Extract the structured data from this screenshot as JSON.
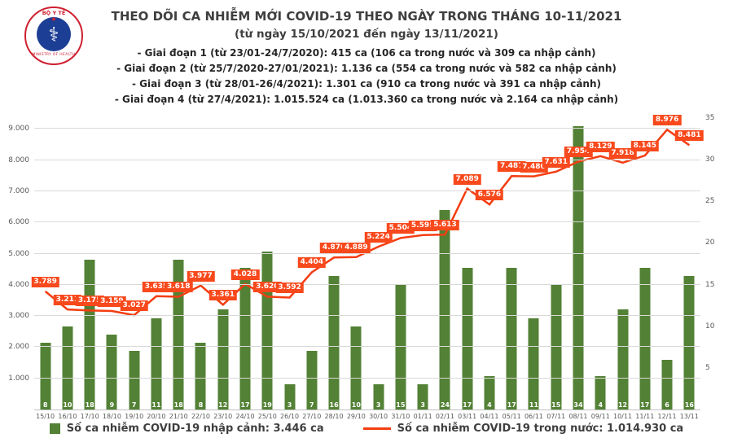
{
  "header": {
    "title": "THEO DÕI CA NHIỄM MỚI COVID-19 THEO NGÀY TRONG THÁNG 10-11/2021",
    "subtitle": "(từ ngày 15/10/2021 đến ngày 13/11/2021)",
    "periods": [
      "- Giai đoạn 1 (từ 23/01-24/7/2020): 415 ca (106 ca trong nước và 309 ca nhập cảnh)",
      "- Giai đoạn 2 (từ 25/7/2020-27/01/2021): 1.136 ca (554 ca trong nước và 582 ca nhập cảnh)",
      "- Giai đoạn 3 (từ 28/01-26/4/2021): 1.301 ca (910 ca trong nước và 391 ca nhập cảnh)",
      "- Giai đoạn 4 (từ 27/4/2021): 1.015.524 ca (1.013.360 ca trong nước và 2.164 ca nhập cảnh)"
    ],
    "logo": {
      "top": "BỘ Y TẾ",
      "bottom": "MINISTRY OF HEALTH"
    }
  },
  "colors": {
    "bar_green": "#538135",
    "line_red": "#f43d12",
    "label_bg": "#f8491c",
    "grid": "#d9d9d9",
    "axis_text": "#595959"
  },
  "chart_data": {
    "type": "combo",
    "title": "THEO DÕI CA NHIỄM MỚI COVID-19 THEO NGÀY TRONG THÁNG 10-11/2021",
    "categories": [
      "15/10",
      "16/10",
      "17/10",
      "18/10",
      "19/10",
      "20/10",
      "21/10",
      "22/10",
      "23/10",
      "24/10",
      "25/10",
      "26/10",
      "27/10",
      "28/10",
      "29/10",
      "30/10",
      "31/10",
      "01/11",
      "02/11",
      "03/11",
      "04/11",
      "05/11",
      "06/11",
      "07/11",
      "08/11",
      "09/11",
      "10/11",
      "11/11",
      "12/11",
      "13/11"
    ],
    "series": [
      {
        "name": "Số ca nhiễm COVID-19 nhập cảnh",
        "type": "bar",
        "axis": "right",
        "color": "#538135",
        "values": [
          8,
          10,
          18,
          9,
          7,
          11,
          18,
          8,
          12,
          17,
          19,
          3,
          7,
          16,
          10,
          3,
          15,
          3,
          24,
          17,
          4,
          17,
          11,
          15,
          34,
          4,
          12,
          17,
          6,
          16
        ]
      },
      {
        "name": "Số ca nhiễm COVID-19 trong nước",
        "type": "line",
        "axis": "left",
        "color": "#f43d12",
        "values": [
          3789,
          3211,
          3175,
          3159,
          3027,
          3635,
          3618,
          3977,
          3361,
          4028,
          3620,
          3592,
          4404,
          4876,
          4889,
          5224,
          5504,
          5595,
          5613,
          7089,
          6576,
          7487,
          7480,
          7631,
          7954,
          8129,
          7918,
          8145,
          8976,
          8481
        ],
        "labels": [
          "3.789",
          "3.211",
          "3.175",
          "3.159",
          "3.027",
          "3.635",
          "3.618",
          "3.977",
          "3.361",
          "4.028",
          "3.620",
          "3.592",
          "4.404",
          "4.876",
          "4.889",
          "5.224",
          "5.504",
          "5.595",
          "5.613",
          "7.089",
          "6.576",
          "7.487",
          "7.480",
          "7.631",
          "7.954",
          "8.129",
          "7.918",
          "8.145",
          "8.976",
          "8.481"
        ]
      }
    ],
    "left_axis": {
      "max": 9350,
      "ticks": [
        {
          "label": "9.000",
          "value": 9000
        },
        {
          "label": "8.000",
          "value": 8000
        },
        {
          "label": "7.000",
          "value": 7000
        },
        {
          "label": "6.000",
          "value": 6000
        },
        {
          "label": "5.000",
          "value": 5000
        },
        {
          "label": "4.000",
          "value": 4000
        },
        {
          "label": "3.000",
          "value": 3000
        },
        {
          "label": "2.000",
          "value": 2000
        },
        {
          "label": "1.000",
          "value": 1000
        }
      ]
    },
    "right_axis": {
      "max": 35,
      "ticks": [
        {
          "label": "35",
          "value": 35
        },
        {
          "label": "30",
          "value": 30
        },
        {
          "label": "25",
          "value": 25
        },
        {
          "label": "20",
          "value": 20
        },
        {
          "label": "15",
          "value": 15
        },
        {
          "label": "10",
          "value": 10
        },
        {
          "label": "5",
          "value": 5
        }
      ]
    },
    "grid": true,
    "legend_position": "bottom"
  },
  "legend": {
    "imported": "Số ca nhiễm COVID-19 nhập cảnh: 3.446 ca",
    "domestic": "Số ca nhiễm COVID-19 trong nước: 1.014.930 ca"
  }
}
